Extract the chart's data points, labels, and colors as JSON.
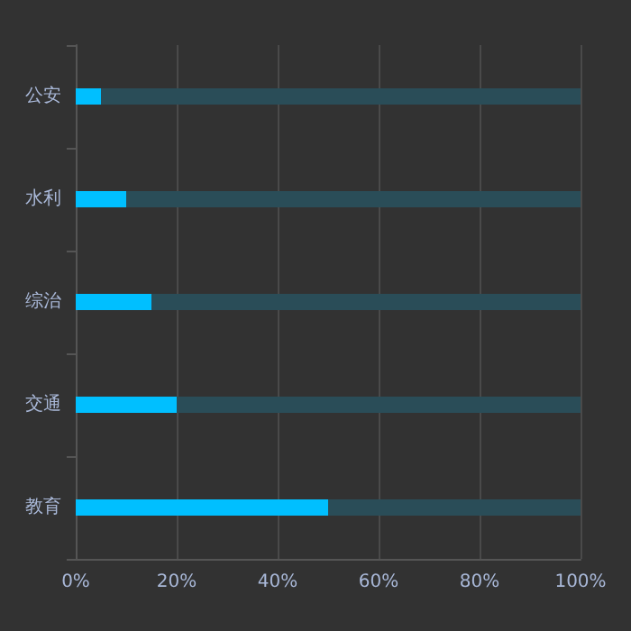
{
  "chart_data": {
    "type": "bar",
    "orientation": "horizontal",
    "categories": [
      "公安",
      "水利",
      "综治",
      "交通",
      "教育"
    ],
    "stacked": true,
    "series": [
      {
        "color": "#00bfff",
        "values": [
          5,
          10,
          15,
          20,
          50
        ]
      },
      {
        "color": "#2a4d58",
        "values": [
          95,
          90,
          85,
          80,
          50
        ]
      }
    ],
    "xlim": [
      0,
      100
    ],
    "xticks": [
      {
        "value": 0,
        "label": "0%"
      },
      {
        "value": 20,
        "label": "20%"
      },
      {
        "value": 40,
        "label": "40%"
      },
      {
        "value": 60,
        "label": "60%"
      },
      {
        "value": 80,
        "label": "80%"
      },
      {
        "value": 100,
        "label": "100%"
      }
    ],
    "grid": "x"
  }
}
